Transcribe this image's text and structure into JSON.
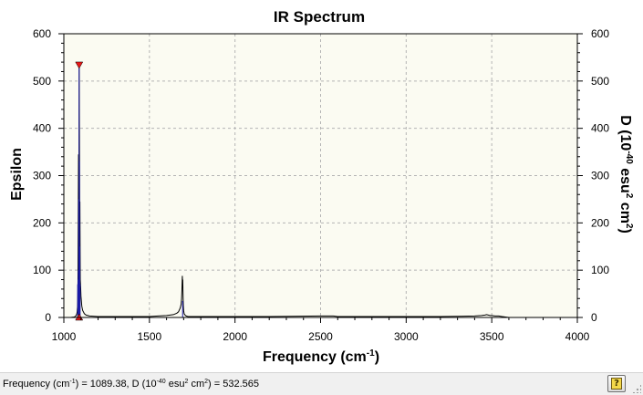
{
  "chart_data": {
    "type": "line",
    "title": "IR Spectrum",
    "xlabel": {
      "text": "Frequency (cm",
      "sup": "-1",
      "tail": ")"
    },
    "ylabel_left": "Epsilon",
    "ylabel_right": {
      "p1": "D (10",
      "s1": "-40",
      "p2": " esu",
      "s2": "2",
      "p3": " cm",
      "s3": "2",
      "p4": ")"
    },
    "xlim": [
      1000,
      4000
    ],
    "ylim": [
      0,
      600
    ],
    "x_ticks": [
      1000,
      1500,
      2000,
      2500,
      3000,
      3500,
      4000
    ],
    "y_ticks": [
      0,
      100,
      200,
      300,
      400,
      500,
      600
    ],
    "grid": true,
    "colors": {
      "plot_background": "#fbfbf2",
      "spectrum_line": "#000000",
      "stick_line": "#1a1aa6",
      "marker": "#e81818",
      "grid": "#b4b4b4"
    },
    "series": [
      {
        "x": [
          1040,
          1060,
          1070,
          1075,
          1078,
          1080,
          1081,
          1082,
          1083,
          1084,
          1085,
          1086,
          1087,
          1088,
          1089.38,
          1090,
          1091,
          1092,
          1093,
          1094,
          1095,
          1096,
          1098,
          1100,
          1105,
          1110,
          1120,
          1130,
          1150,
          1200,
          1250,
          1300,
          1350,
          1400,
          1500,
          1550,
          1600,
          1640,
          1660,
          1670,
          1680,
          1685,
          1688,
          1690,
          1692,
          1694,
          1695,
          1696,
          1697,
          1698,
          1700,
          1703,
          1708,
          1715,
          1725,
          1740,
          1760,
          1800,
          2000,
          2200,
          2500,
          2575,
          2600,
          3000,
          3200,
          3400,
          3440,
          3460,
          3470,
          3480,
          3490,
          3500,
          3520,
          3540,
          3560,
          3580,
          3600
        ],
        "y": [
          0,
          1,
          3,
          7,
          12,
          22,
          35,
          60,
          110,
          200,
          300,
          345,
          250,
          200,
          532.565,
          480,
          380,
          250,
          220,
          245,
          160,
          80,
          65,
          45,
          24,
          15,
          8,
          5,
          3,
          2,
          2,
          2,
          2,
          2,
          2,
          3,
          4,
          6,
          9,
          12,
          20,
          28,
          40,
          60,
          88,
          72,
          80,
          58,
          40,
          25,
          14,
          8,
          5,
          3,
          2,
          2,
          2,
          2,
          2,
          2,
          3,
          3,
          2,
          2,
          2,
          3,
          4,
          5,
          6,
          5,
          4,
          4,
          3,
          3,
          2,
          1,
          0
        ]
      }
    ],
    "sticks": [
      {
        "x": 1081,
        "y": 70
      },
      {
        "x": 1083,
        "y": 80
      },
      {
        "x": 1085,
        "y": 100
      },
      {
        "x": 1087,
        "y": 250
      },
      {
        "x": 1089.38,
        "y": 532.565
      },
      {
        "x": 1091,
        "y": 330
      },
      {
        "x": 1093,
        "y": 150
      },
      {
        "x": 1095,
        "y": 70
      },
      {
        "x": 1694,
        "y": 35
      }
    ],
    "selected_peak": {
      "x": 1089.38,
      "y": 532.565
    }
  },
  "status": {
    "t1": "Frequency (cm",
    "s1": "-1",
    "t2": ") = 1089.38, D (10",
    "s2": "-40",
    "t3": " esu",
    "s3": "2",
    "t4": " cm",
    "s4": "2",
    "t5": ") = 532.565"
  },
  "help_button": {
    "icon": "help-icon",
    "glyph": "?"
  },
  "grip": {
    "icon": "resize-grip-icon"
  }
}
